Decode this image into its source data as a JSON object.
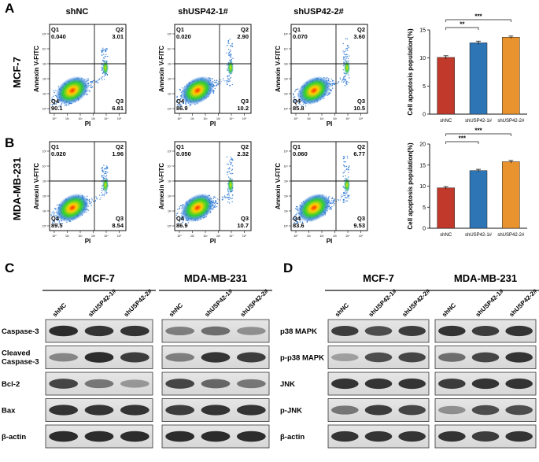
{
  "panel_letters": {
    "a": "A",
    "b": "B",
    "c": "C",
    "d": "D"
  },
  "flow": {
    "col_titles": [
      "shNC",
      "shUSP42-1#",
      "shUSP42-2#"
    ],
    "xlabel": "PI",
    "ylabel": "Annexin V-FITC",
    "rows": [
      {
        "cell_line": "MCF-7",
        "plots": [
          {
            "q1": "Q1",
            "q1v": "0.040",
            "q2": "Q2",
            "q2v": "3.01",
            "q3": "Q3",
            "q3v": "6.81",
            "q4": "Q4",
            "q4v": "90.1"
          },
          {
            "q1": "Q1",
            "q1v": "0.020",
            "q2": "Q2",
            "q2v": "2.90",
            "q3": "Q3",
            "q3v": "10.2",
            "q4": "Q4",
            "q4v": "86.9"
          },
          {
            "q1": "Q1",
            "q1v": "0.070",
            "q2": "Q2",
            "q2v": "3.60",
            "q3": "Q3",
            "q3v": "10.5",
            "q4": "Q4",
            "q4v": "85.8"
          }
        ]
      },
      {
        "cell_line": "MDA-MB-231",
        "plots": [
          {
            "q1": "Q1",
            "q1v": "0.020",
            "q2": "Q2",
            "q2v": "1.96",
            "q3": "Q3",
            "q3v": "8.54",
            "q4": "Q4",
            "q4v": "89.5"
          },
          {
            "q1": "Q1",
            "q1v": "0.050",
            "q2": "Q2",
            "q2v": "2.32",
            "q3": "Q3",
            "q3v": "10.7",
            "q4": "Q4",
            "q4v": "86.9"
          },
          {
            "q1": "Q1",
            "q1v": "0.060",
            "q2": "Q2",
            "q2v": "6.77",
            "q3": "Q3",
            "q3v": "9.53",
            "q4": "Q4",
            "q4v": "83.6"
          }
        ]
      }
    ]
  },
  "colors": {
    "shNC": "#c0392b",
    "sh1": "#2e75b6",
    "sh2": "#e8932e",
    "axis": "#111111"
  },
  "chart_data": [
    {
      "type": "bar",
      "title": "MCF-7",
      "categories": [
        "shNC",
        "shUSP42-1#",
        "shUSP42-2#"
      ],
      "values": [
        10.1,
        12.7,
        13.7
      ],
      "errors": [
        0.3,
        0.3,
        0.2
      ],
      "ylabel": "Cell apoptosis population(%)",
      "ylim": [
        0,
        15
      ],
      "yticks": [
        0,
        5,
        10,
        15
      ],
      "significance": [
        {
          "from": 0,
          "to": 1,
          "label": "**"
        },
        {
          "from": 0,
          "to": 2,
          "label": "***"
        }
      ]
    },
    {
      "type": "bar",
      "title": "MDA-MB-231",
      "categories": [
        "shNC",
        "shUSP42-1#",
        "shUSP42-2#"
      ],
      "values": [
        9.6,
        13.7,
        15.8
      ],
      "errors": [
        0.3,
        0.3,
        0.3
      ],
      "ylabel": "Cell apoptosis population(%)",
      "ylim": [
        0,
        20
      ],
      "yticks": [
        0,
        5,
        10,
        15,
        20
      ],
      "significance": [
        {
          "from": 0,
          "to": 1,
          "label": "***"
        },
        {
          "from": 0,
          "to": 2,
          "label": "***"
        }
      ]
    }
  ],
  "westernC": {
    "groups": [
      "MCF-7",
      "MDA-MB-231"
    ],
    "lanes": [
      "shNC",
      "shUSP42-1#",
      "shUSP42-2#"
    ],
    "proteins": [
      "Caspase-3",
      "Cleaved\nCaspase-3",
      "Bcl-2",
      "Bax",
      "β-actin"
    ]
  },
  "westernD": {
    "groups": [
      "MCF-7",
      "MDA-MB-231"
    ],
    "lanes": [
      "shNC",
      "shUSP42-1#",
      "shUSP42-2#"
    ],
    "proteins": [
      "p38 MAPK",
      "p-p38 MAPK",
      "JNK",
      "p-JNK",
      "β-actin"
    ]
  }
}
